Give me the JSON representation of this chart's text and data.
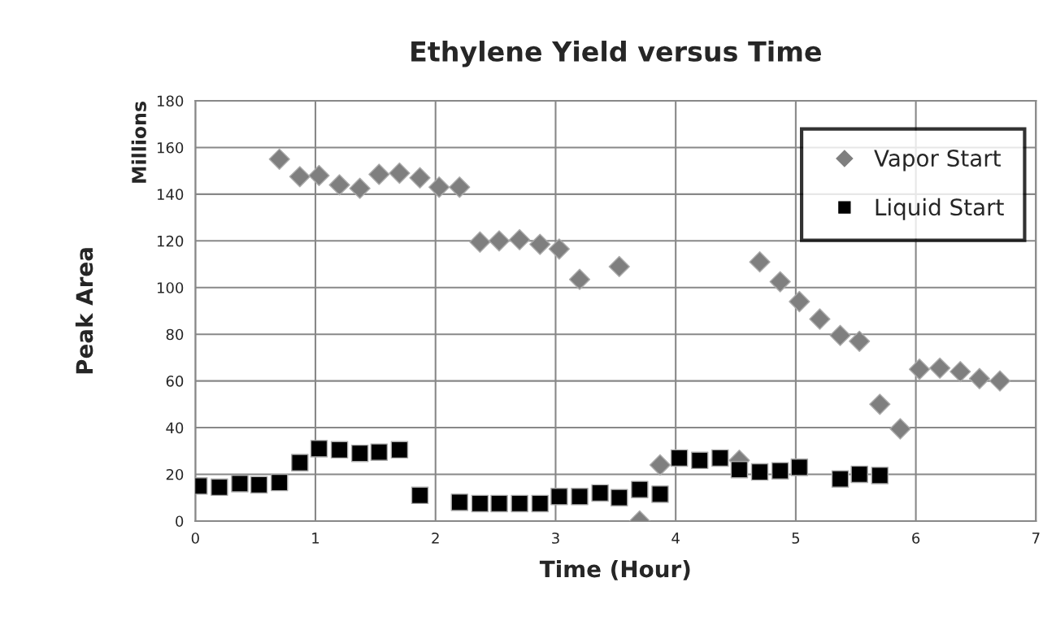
{
  "chart_data": {
    "type": "scatter",
    "title": "Ethylene Yield versus Time",
    "xlabel": "Time (Hour)",
    "ylabel": "Peak Area",
    "annotations": [
      "Millions"
    ],
    "xlim": [
      0,
      7
    ],
    "xticks": [
      0,
      1,
      2,
      3,
      4,
      5,
      6,
      7
    ],
    "ylim": [
      0,
      180
    ],
    "yticks": [
      0,
      20,
      40,
      60,
      80,
      100,
      120,
      140,
      160,
      180
    ],
    "grid": true,
    "legend": "top right",
    "series": [
      {
        "name": "Vapor Start",
        "color": "#7f7f7f",
        "marker": "diamond",
        "x": [
          0.7,
          0.87,
          1.03,
          1.2,
          1.37,
          1.53,
          1.7,
          1.87,
          2.03,
          2.2,
          2.37,
          2.53,
          2.7,
          2.87,
          3.03,
          3.2,
          3.53,
          3.7,
          3.87,
          4.03,
          4.2,
          4.37,
          4.53,
          4.7,
          4.87,
          5.03,
          5.2,
          5.37,
          5.53,
          5.7,
          5.87,
          6.03,
          6.2,
          6.37,
          6.53,
          6.7
        ],
        "values": [
          155,
          147.5,
          148,
          144,
          142.5,
          148.5,
          149,
          147,
          143,
          143,
          119.5,
          120,
          120.5,
          118.5,
          116.5,
          103.5,
          109,
          0,
          24,
          null,
          null,
          null,
          26,
          111,
          102.5,
          94,
          86.5,
          79.5,
          77,
          50,
          39.5,
          65,
          65.5,
          64,
          61,
          60
        ]
      },
      {
        "name": "Liquid Start",
        "color": "#000000",
        "marker": "square",
        "x": [
          0.03,
          0.2,
          0.37,
          0.53,
          0.7,
          0.87,
          1.03,
          1.2,
          1.37,
          1.53,
          1.7,
          1.87,
          2.2,
          2.37,
          2.53,
          2.7,
          2.87,
          3.03,
          3.2,
          3.37,
          3.53,
          3.7,
          3.87,
          4.03,
          4.2,
          4.37,
          4.53,
          4.7,
          4.87,
          5.03,
          5.37,
          5.53,
          5.7
        ],
        "values": [
          15,
          14.5,
          16,
          15.5,
          16.5,
          25,
          31,
          30.5,
          29,
          29.5,
          30.5,
          11,
          8,
          7.5,
          7.5,
          7.5,
          7.5,
          10.5,
          10.5,
          12,
          10,
          13.5,
          11.5,
          27,
          26,
          27,
          22,
          21,
          21.5,
          23,
          18,
          20,
          19.5
        ]
      }
    ]
  }
}
